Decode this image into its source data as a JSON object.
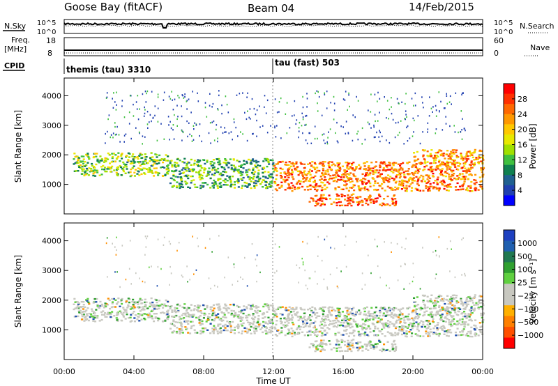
{
  "header": {
    "station": "Goose Bay (fitACF)",
    "beam": "Beam 04",
    "date": "14/Feb/2015"
  },
  "top_panels": {
    "nsky_label": "N.Sky",
    "nsky_ticks": [
      "10^5",
      "10^0"
    ],
    "nsearch_label": "N.Search",
    "nsearch_ticks": [
      "10^5",
      "10^0"
    ],
    "freq_label_1": "Freq.",
    "freq_label_2": "[MHz]",
    "freq_ticks": [
      "18",
      "8"
    ],
    "nave_label": "Nave",
    "nave_ticks": [
      "60",
      "0"
    ],
    "cpid_label": "CPID",
    "cpid_segments": [
      {
        "label": "themis (tau) 3310",
        "start_hour": 0
      },
      {
        "label": "tau (fast) 503",
        "start_hour": 12
      }
    ]
  },
  "power_colorbar": {
    "label": "Power [dB]",
    "ticks": [
      "28",
      "24",
      "20",
      "16",
      "12",
      "8",
      "4"
    ],
    "colors": [
      "#ff0000",
      "#ff3000",
      "#ff6800",
      "#ff9800",
      "#ffc800",
      "#e8e800",
      "#a0e000",
      "#40c040",
      "#108050",
      "#206090",
      "#2040b0",
      "#0000ff"
    ]
  },
  "velocity_colorbar": {
    "label": "Velocity [m s⁻¹]",
    "ticks": [
      "1000",
      "500",
      "100",
      "25",
      "−25",
      "−100",
      "−500",
      "−1000"
    ],
    "colors": [
      "#1e40c0",
      "#2060b0",
      "#207850",
      "#30a030",
      "#60d040",
      "#c8c8c0",
      "#c8c8c0",
      "#ffb000",
      "#ff8000",
      "#ff5000",
      "#ff0000"
    ]
  },
  "chart_data": [
    {
      "type": "heatmap",
      "name": "power",
      "ylabel": "Slant Range [km]",
      "yticks": [
        "1000",
        "2000",
        "3000",
        "4000"
      ],
      "ylim": [
        0,
        4600
      ],
      "xlim_hours": [
        0,
        24
      ],
      "bands_km_hours": [
        {
          "t0": 0.5,
          "t1": 6,
          "r0": 1300,
          "r1": 2100,
          "level": 12
        },
        {
          "t0": 6,
          "t1": 12,
          "r0": 900,
          "r1": 1900,
          "level": 10
        },
        {
          "t0": 12,
          "t1": 24,
          "r0": 800,
          "r1": 1800,
          "level": 22
        },
        {
          "t0": 14,
          "t1": 19,
          "r0": 300,
          "r1": 700,
          "level": 24
        },
        {
          "t0": 20,
          "t1": 24,
          "r0": 1700,
          "r1": 2200,
          "level": 20
        }
      ]
    },
    {
      "type": "heatmap",
      "name": "velocity",
      "ylabel": "Slant Range [km]",
      "yticks": [
        "1000",
        "2000",
        "3000",
        "4000"
      ],
      "ylim": [
        0,
        4600
      ],
      "xlim_hours": [
        0,
        24
      ]
    }
  ],
  "x_axis": {
    "ticks": [
      "00:00",
      "04:00",
      "08:00",
      "12:00",
      "16:00",
      "20:00",
      "00:00"
    ],
    "label": "Time UT"
  }
}
